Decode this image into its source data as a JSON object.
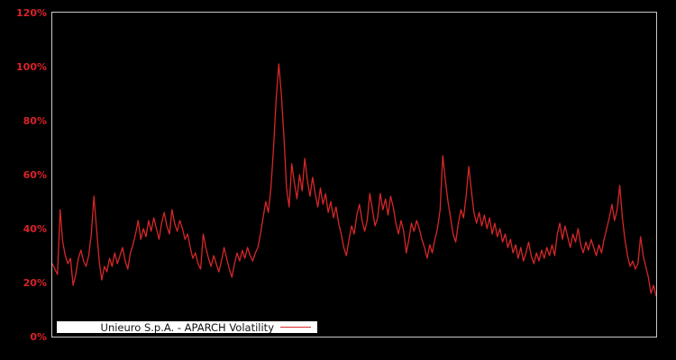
{
  "chart_data": {
    "type": "line",
    "title": "",
    "xlabel": "",
    "ylabel": "",
    "ylim": [
      0,
      120
    ],
    "grid": false,
    "background_color": "#000000",
    "frame_color": "#c9c9c9",
    "tick_label_color": "#d8232a",
    "yticks": [
      {
        "value": 0,
        "label": "0%"
      },
      {
        "value": 20,
        "label": "20%"
      },
      {
        "value": 40,
        "label": "40%"
      },
      {
        "value": 60,
        "label": "60%"
      },
      {
        "value": 80,
        "label": "80%"
      },
      {
        "value": 100,
        "label": "100%"
      },
      {
        "value": 120,
        "label": "120%"
      }
    ],
    "xticks": [],
    "legend_position": "bottom-left",
    "series": [
      {
        "name": "Unieuro S.p.A. - APARCH Volatility",
        "color": "#d62728",
        "unit": "%",
        "values": [
          27,
          25,
          23,
          47,
          35,
          30,
          27,
          29,
          19,
          23,
          29,
          32,
          28,
          26,
          30,
          38,
          52,
          40,
          28,
          21,
          26,
          24,
          29,
          26,
          31,
          27,
          30,
          33,
          28,
          25,
          31,
          34,
          38,
          43,
          36,
          40,
          37,
          43,
          39,
          44,
          40,
          36,
          42,
          46,
          41,
          38,
          47,
          42,
          39,
          43,
          40,
          36,
          38,
          33,
          29,
          31,
          27,
          25,
          38,
          33,
          29,
          26,
          30,
          27,
          24,
          28,
          33,
          29,
          25,
          22,
          27,
          31,
          28,
          32,
          29,
          33,
          30,
          28,
          31,
          33,
          38,
          44,
          50,
          46,
          55,
          70,
          88,
          101,
          90,
          74,
          55,
          48,
          64,
          57,
          51,
          60,
          54,
          66,
          58,
          52,
          59,
          53,
          48,
          55,
          49,
          53,
          46,
          50,
          44,
          48,
          42,
          38,
          33,
          30,
          36,
          41,
          38,
          45,
          49,
          43,
          39,
          43,
          53,
          47,
          41,
          44,
          53,
          47,
          51,
          45,
          52,
          48,
          42,
          38,
          43,
          39,
          31,
          36,
          42,
          39,
          43,
          40,
          36,
          33,
          29,
          34,
          31,
          36,
          40,
          47,
          67,
          58,
          50,
          44,
          38,
          35,
          42,
          47,
          44,
          52,
          63,
          54,
          46,
          42,
          46,
          41,
          45,
          40,
          44,
          38,
          42,
          37,
          40,
          35,
          38,
          33,
          36,
          31,
          34,
          29,
          33,
          28,
          31,
          35,
          30,
          27,
          31,
          28,
          32,
          29,
          33,
          30,
          34,
          30,
          38,
          42,
          36,
          41,
          37,
          33,
          38,
          35,
          40,
          34,
          31,
          35,
          32,
          36,
          33,
          30,
          34,
          31,
          36,
          40,
          44,
          49,
          43,
          47,
          56,
          44,
          36,
          30,
          26,
          28,
          25,
          27,
          37,
          30,
          26,
          22,
          16,
          19,
          15
        ]
      }
    ]
  },
  "legend": {
    "label": "Unieuro S.p.A. - APARCH Volatility"
  }
}
